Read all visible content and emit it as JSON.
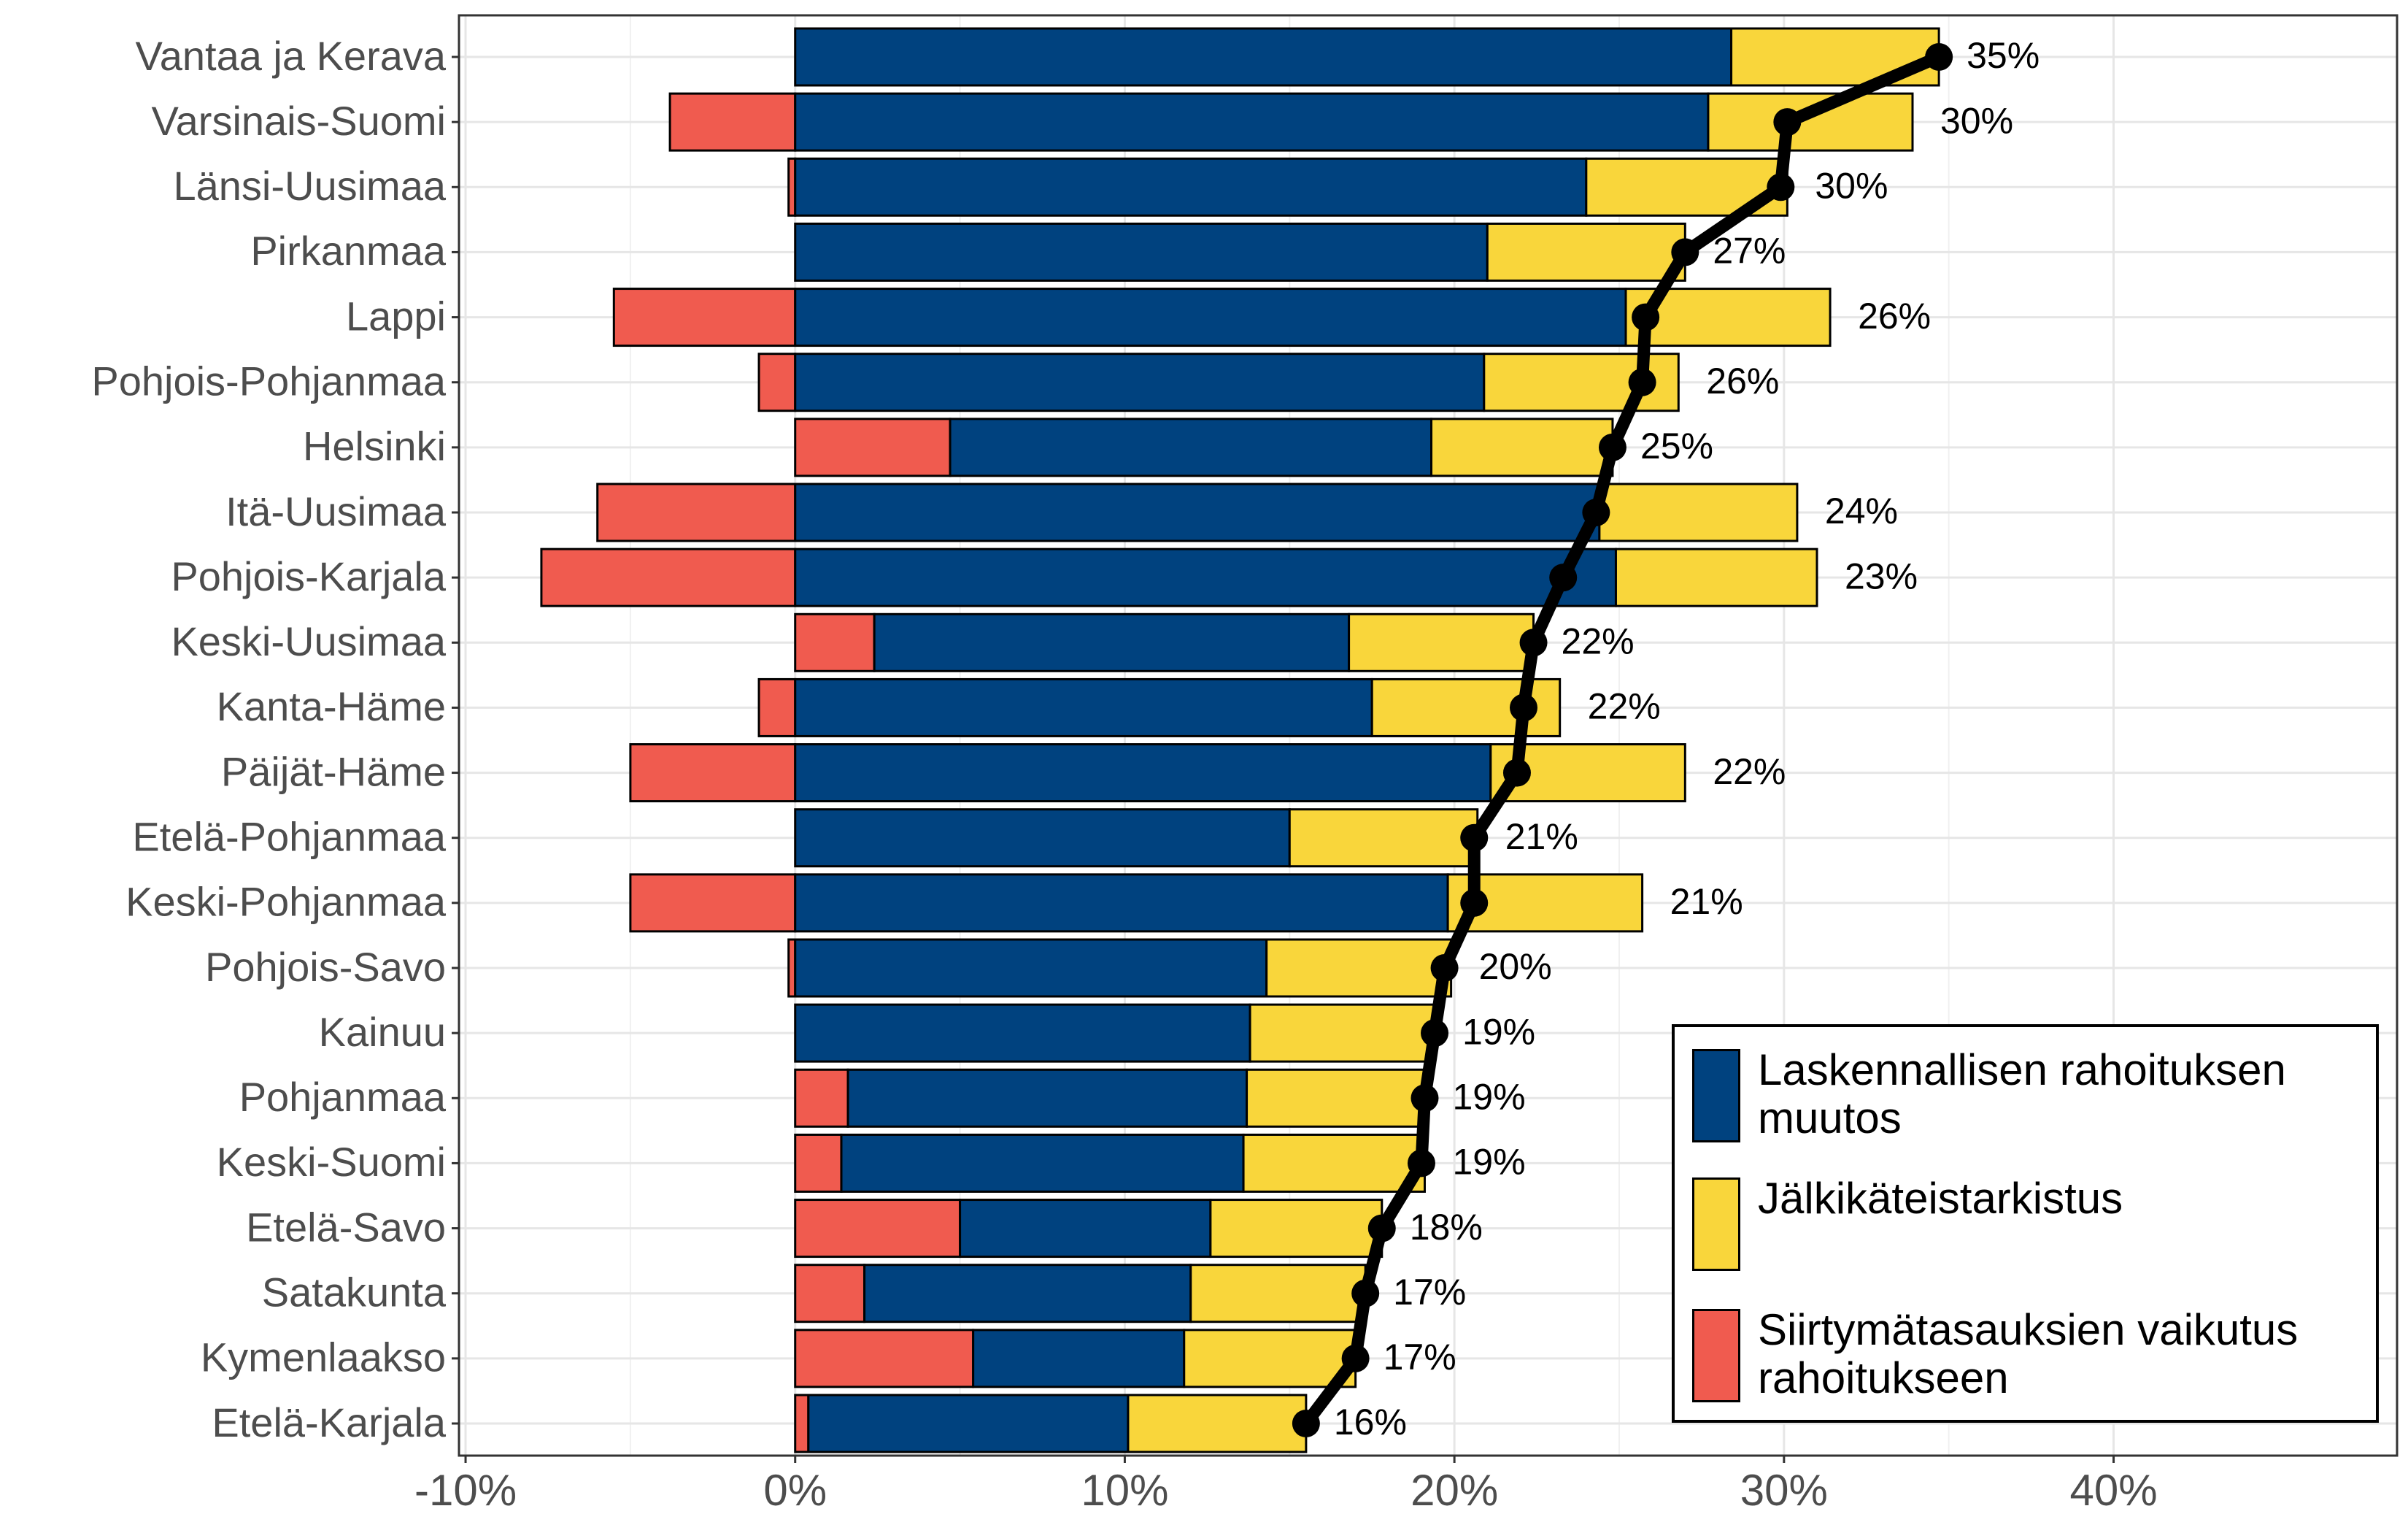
{
  "chart_data": {
    "type": "stacked-bar-horizontal",
    "categories": [
      "Vantaa ja Kerava",
      "Varsinais-Suomi",
      "Länsi-Uusimaa",
      "Pirkanmaa",
      "Lappi",
      "Pohjois-Pohjanmaa",
      "Helsinki",
      "Itä-Uusimaa",
      "Pohjois-Karjala",
      "Keski-Uusimaa",
      "Kanta-Häme",
      "Päijät-Häme",
      "Etelä-Pohjanmaa",
      "Keski-Pohjanmaa",
      "Pohjois-Savo",
      "Kainuu",
      "Pohjanmaa",
      "Keski-Suomi",
      "Etelä-Savo",
      "Satakunta",
      "Kymenlaakso",
      "Etelä-Karjala"
    ],
    "series": [
      {
        "name": "Laskennallisen rahoituksen muutos",
        "color": "#00427f",
        "values": [
          28.4,
          27.7,
          24.0,
          21.0,
          25.2,
          20.9,
          14.6,
          24.4,
          24.9,
          14.4,
          17.5,
          21.1,
          15.0,
          19.8,
          14.3,
          13.8,
          12.1,
          12.2,
          7.6,
          9.9,
          6.4,
          9.7
        ]
      },
      {
        "name": "Jälkikäteistarkistus",
        "color": "#f9d63b",
        "values": [
          6.3,
          6.2,
          6.1,
          6.0,
          6.2,
          5.9,
          5.5,
          6.0,
          6.1,
          5.6,
          5.7,
          5.9,
          5.7,
          5.9,
          5.6,
          5.6,
          5.4,
          5.5,
          5.2,
          5.3,
          5.2,
          5.4
        ]
      },
      {
        "name": "Siirtymätasauksien vaikutus rahoitukseen",
        "color": "#f05b4f",
        "values": [
          0,
          -3.8,
          -0.2,
          0,
          -5.5,
          -1.1,
          4.7,
          -6.0,
          -7.7,
          2.4,
          -1.1,
          -5.0,
          0,
          -5.0,
          -0.2,
          0,
          1.6,
          1.4,
          5.0,
          2.1,
          5.4,
          0.4
        ]
      }
    ],
    "totals": {
      "values": [
        34.7,
        30.1,
        29.9,
        27.0,
        25.8,
        25.7,
        24.8,
        24.3,
        23.3,
        22.4,
        22.1,
        21.9,
        20.6,
        20.6,
        19.7,
        19.4,
        19.1,
        19.0,
        17.8,
        17.3,
        17.0,
        15.5
      ],
      "value_labels": [
        "35%",
        "30%",
        "30%",
        "27%",
        "26%",
        "26%",
        "25%",
        "24%",
        "23%",
        "22%",
        "22%",
        "22%",
        "21%",
        "21%",
        "20%",
        "19%",
        "19%",
        "19%",
        "18%",
        "17%",
        "17%",
        "16%"
      ]
    },
    "xlim": [
      -10.2,
      48.6
    ],
    "xticks": [
      {
        "value": -10,
        "label": "-10%"
      },
      {
        "value": 0,
        "label": "0%"
      },
      {
        "value": 10,
        "label": "10%"
      },
      {
        "value": 20,
        "label": "20%"
      },
      {
        "value": 30,
        "label": "30%"
      },
      {
        "value": 40,
        "label": "40%"
      }
    ],
    "grid": true,
    "legend_position": "bottom-right"
  }
}
